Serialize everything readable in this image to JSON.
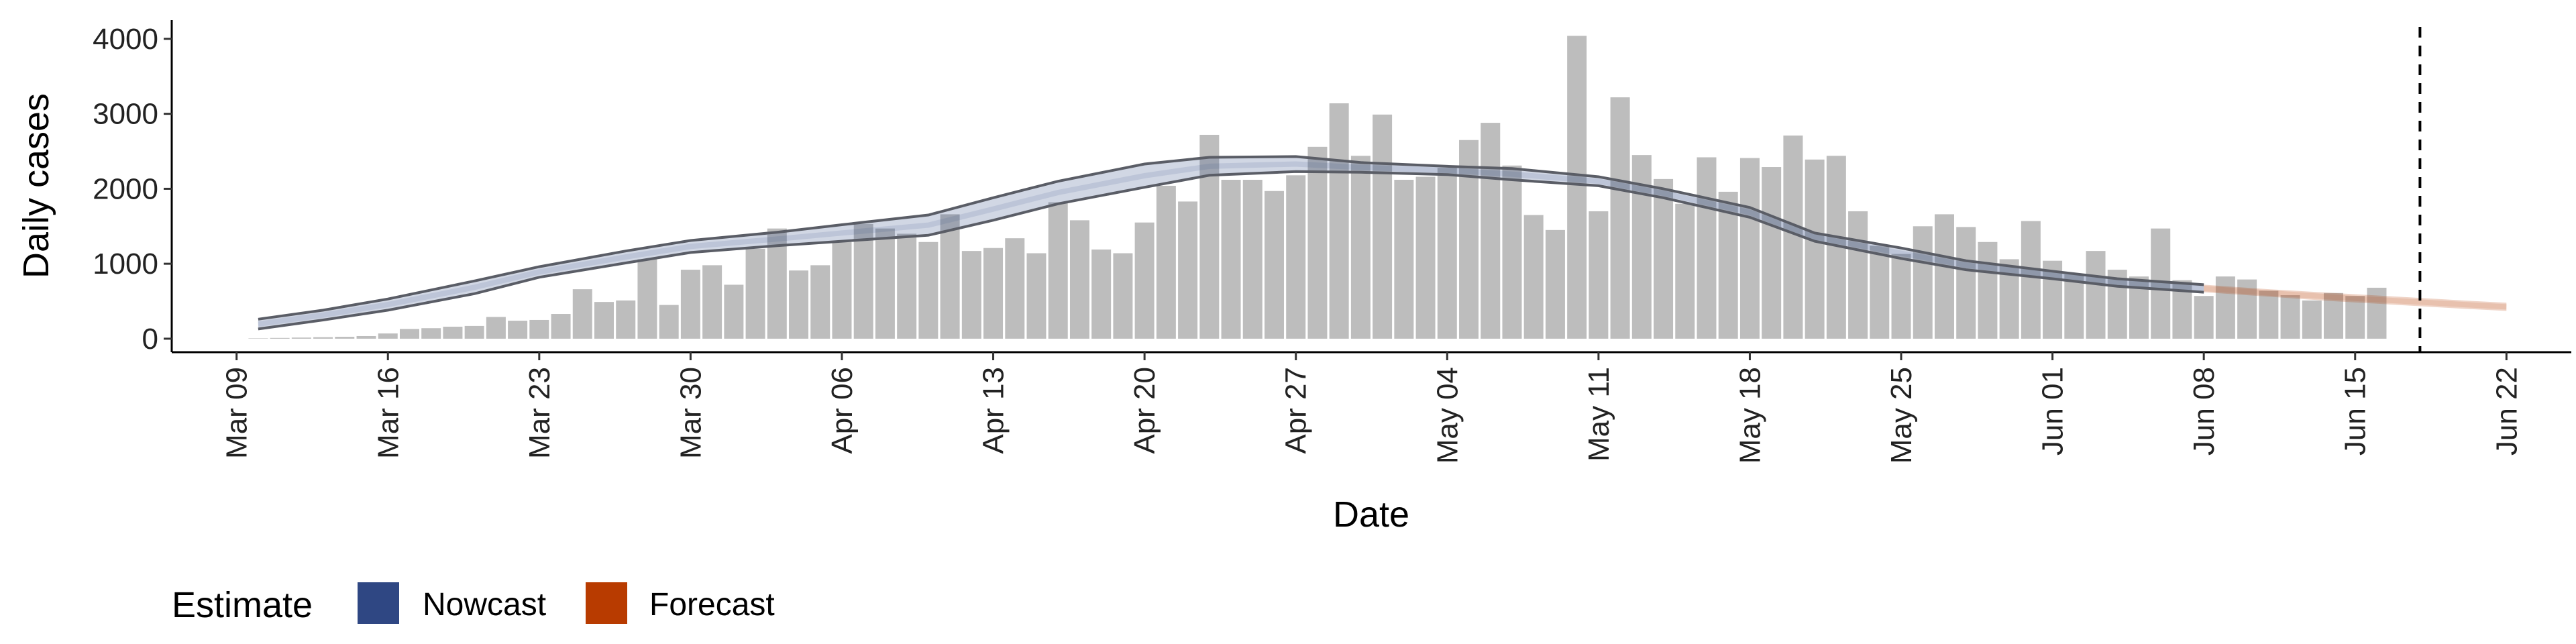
{
  "chart_data": {
    "type": "bar",
    "xlabel": "Date",
    "ylabel": "Daily cases",
    "x_tick_labels": [
      "Mar 09",
      "Mar 16",
      "Mar 23",
      "Mar 30",
      "Apr 06",
      "Apr 13",
      "Apr 20",
      "Apr 27",
      "May 04",
      "May 11",
      "May 18",
      "May 25",
      "Jun 01",
      "Jun 08",
      "Jun 15",
      "Jun 22"
    ],
    "y_ticks": [
      0,
      1000,
      2000,
      3000,
      4000
    ],
    "xlim": [
      "2020-03-06",
      "2020-06-25"
    ],
    "ylim": [
      -180,
      4250
    ],
    "grid": false,
    "bar_color": "#bdbdbd",
    "reference_line": {
      "date": "2020-06-18",
      "style": "dashed",
      "color": "#000000"
    },
    "bars": {
      "start_date": "2020-03-10",
      "values": [
        5,
        10,
        15,
        20,
        25,
        35,
        70,
        130,
        140,
        160,
        170,
        290,
        240,
        250,
        330,
        660,
        490,
        510,
        1060,
        450,
        920,
        980,
        720,
        1200,
        1470,
        910,
        980,
        1290,
        1530,
        1470,
        1400,
        1290,
        1660,
        1170,
        1210,
        1340,
        1140,
        1820,
        1580,
        1190,
        1140,
        1550,
        2040,
        1830,
        2720,
        2120,
        2120,
        1970,
        2180,
        2560,
        3140,
        2440,
        2990,
        2120,
        2160,
        2280,
        2650,
        2880,
        2310,
        1650,
        1450,
        4040,
        1700,
        3220,
        2450,
        2130,
        1800,
        2420,
        1960,
        2410,
        2290,
        2710,
        2390,
        2440,
        1700,
        1240,
        1130,
        1500,
        1660,
        1490,
        1290,
        1060,
        1570,
        1040,
        860,
        1170,
        920,
        830,
        1470,
        780,
        570,
        830,
        790,
        640,
        580,
        510,
        610,
        570,
        680
      ]
    },
    "series": [
      {
        "name": "Nowcast",
        "color": "#2f4783",
        "x": [
          "2020-03-10",
          "2020-03-13",
          "2020-03-16",
          "2020-03-20",
          "2020-03-23",
          "2020-03-27",
          "2020-03-30",
          "2020-04-03",
          "2020-04-06",
          "2020-04-10",
          "2020-04-13",
          "2020-04-16",
          "2020-04-20",
          "2020-04-23",
          "2020-04-27",
          "2020-04-30",
          "2020-05-04",
          "2020-05-07",
          "2020-05-11",
          "2020-05-14",
          "2020-05-18",
          "2020-05-21",
          "2020-05-25",
          "2020-05-28",
          "2020-06-01",
          "2020-06-04",
          "2020-06-08"
        ],
        "lower": [
          130,
          250,
          380,
          600,
          820,
          1010,
          1150,
          1240,
          1300,
          1380,
          1580,
          1800,
          2020,
          2180,
          2230,
          2220,
          2190,
          2120,
          2040,
          1880,
          1620,
          1300,
          1070,
          920,
          800,
          700,
          620
        ],
        "upper": [
          260,
          380,
          530,
          770,
          960,
          1170,
          1310,
          1420,
          1520,
          1650,
          1880,
          2100,
          2330,
          2420,
          2430,
          2350,
          2300,
          2270,
          2160,
          2000,
          1750,
          1410,
          1210,
          1040,
          900,
          800,
          720
        ]
      },
      {
        "name": "Forecast",
        "color": "#b83b00",
        "x": [
          "2020-06-08",
          "2020-06-11",
          "2020-06-14",
          "2020-06-17",
          "2020-06-20",
          "2020-06-22"
        ],
        "lower": [
          620,
          560,
          500,
          450,
          400,
          370
        ],
        "upper": [
          720,
          660,
          610,
          560,
          510,
          480
        ]
      }
    ],
    "legend": {
      "position": "bottom-left",
      "title": "Estimate",
      "entries": [
        {
          "label": "Nowcast",
          "color": "#2f4783"
        },
        {
          "label": "Forecast",
          "color": "#b83b00"
        }
      ]
    }
  }
}
